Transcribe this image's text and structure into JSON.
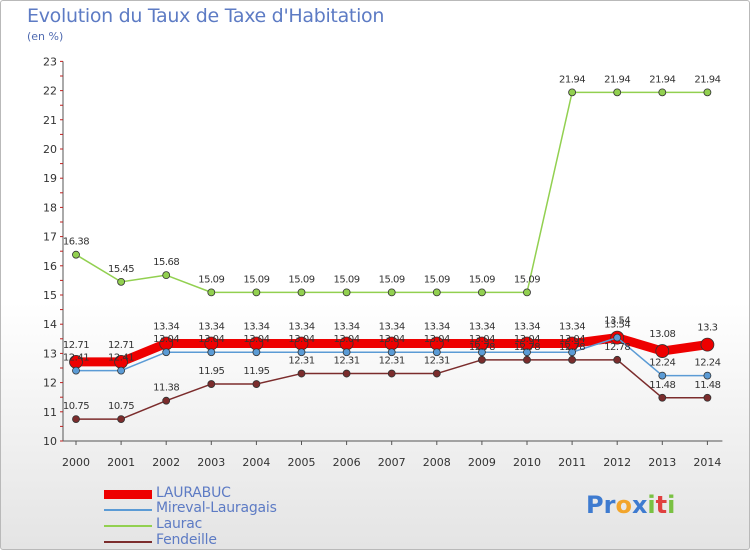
{
  "title": "Evolution du Taux de Taxe d'Habitation",
  "unit": "(en %)",
  "logo": [
    "P",
    "r",
    "o",
    "x",
    "i",
    "t",
    "i"
  ],
  "logo_colors": [
    "#3e7bd0",
    "#3e7bd0",
    "#f2a52c",
    "#3e7bd0",
    "#7ac142",
    "#e04040",
    "#7ac142"
  ],
  "chart_data": {
    "type": "line",
    "x": [
      "2000",
      "2001",
      "2002",
      "2003",
      "2004",
      "2005",
      "2006",
      "2007",
      "2008",
      "2009",
      "2010",
      "2011",
      "2012",
      "2013",
      "2014"
    ],
    "ylim": [
      10,
      23
    ],
    "yticks": [
      10,
      11,
      12,
      13,
      14,
      15,
      16,
      17,
      18,
      19,
      20,
      21,
      22,
      23
    ],
    "grid": false,
    "legend_position": "bottom-left",
    "series": [
      {
        "name": "LAURABUC",
        "color": "#ee0000",
        "width": 9,
        "marker_r": 6.5,
        "values": [
          12.71,
          12.71,
          13.34,
          13.34,
          13.34,
          13.34,
          13.34,
          13.34,
          13.34,
          13.34,
          13.34,
          13.34,
          13.54,
          13.08,
          13.3
        ],
        "labels": [
          "12.71",
          "12.71",
          "13.34",
          "13.34",
          "13.34",
          "13.34",
          "13.34",
          "13.34",
          "13.34",
          "13.34",
          "13.34",
          "13.34",
          "13.54",
          "13.08",
          "13.3"
        ],
        "label_pos": [
          "above",
          "above",
          "above",
          "above",
          "above",
          "above",
          "above",
          "above",
          "above",
          "above",
          "above",
          "above",
          "above",
          "above",
          "above"
        ]
      },
      {
        "name": "Mireval-Lauragais",
        "color": "#5b9bd5",
        "width": 1.5,
        "marker_r": 3.5,
        "values": [
          12.41,
          12.41,
          13.04,
          13.04,
          13.04,
          13.04,
          13.04,
          13.04,
          13.04,
          13.04,
          13.04,
          13.04,
          13.54,
          12.24,
          12.24
        ],
        "labels": [
          "12.41",
          "12.41",
          "13.04",
          "13.04",
          "13.04",
          "13.04",
          "13.04",
          "13.04",
          "13.04",
          "13.04",
          "13.04",
          "13.04",
          "13.54",
          "12.24",
          "12.24"
        ],
        "label_pos": [
          "above",
          "above",
          "above",
          "above",
          "above",
          "above",
          "above",
          "above",
          "above",
          "above",
          "above",
          "above",
          "above",
          "above",
          "above"
        ]
      },
      {
        "name": "Laurac",
        "color": "#92d050",
        "width": 1.5,
        "marker_r": 3.5,
        "values": [
          16.38,
          15.45,
          15.68,
          15.09,
          15.09,
          15.09,
          15.09,
          15.09,
          15.09,
          15.09,
          15.09,
          21.94,
          21.94,
          21.94,
          21.94
        ],
        "labels": [
          "16.38",
          "15.45",
          "15.68",
          "15.09",
          "15.09",
          "15.09",
          "15.09",
          "15.09",
          "15.09",
          "15.09",
          "15.09",
          "21.94",
          "21.94",
          "21.94",
          "21.94"
        ],
        "label_pos": [
          "above",
          "above",
          "above",
          "above",
          "above",
          "above",
          "above",
          "above",
          "above",
          "above",
          "above",
          "above",
          "above",
          "above",
          "above"
        ]
      },
      {
        "name": "Fendeille",
        "color": "#7b2c2c",
        "width": 1.5,
        "marker_r": 3.5,
        "values": [
          10.75,
          10.75,
          11.38,
          11.95,
          11.95,
          12.31,
          12.31,
          12.31,
          12.31,
          12.78,
          12.78,
          12.78,
          12.78,
          11.48,
          11.48
        ],
        "labels": [
          "10.75",
          "10.75",
          "11.38",
          "11.95",
          "11.95",
          "12.31",
          "12.31",
          "12.31",
          "12.31",
          "12.78",
          "12.78",
          "12.78",
          "12.78",
          "11.48",
          "11.48"
        ],
        "label_pos": [
          "above",
          "above",
          "above",
          "above",
          "above",
          "above",
          "above",
          "above",
          "above",
          "above",
          "above",
          "above",
          "above",
          "above",
          "above"
        ]
      }
    ]
  }
}
